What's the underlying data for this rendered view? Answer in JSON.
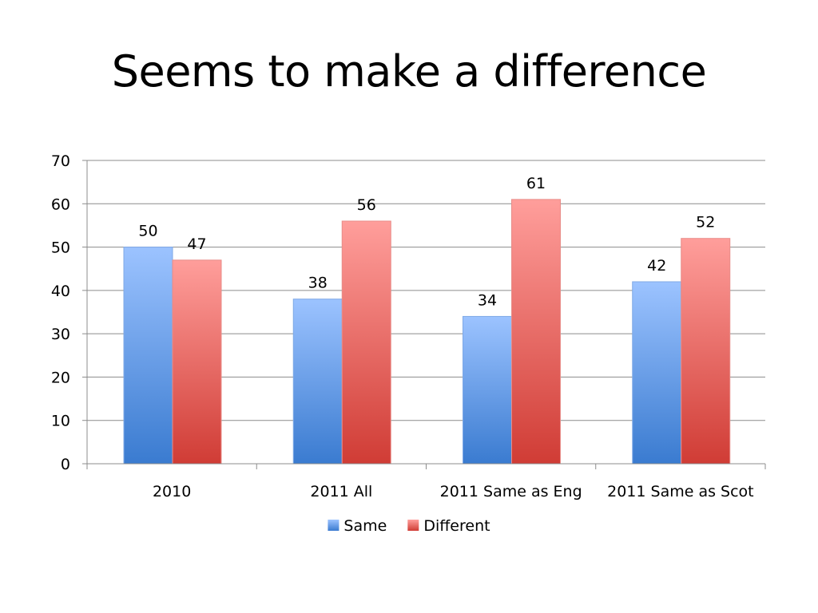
{
  "slide": {
    "title": "Seems to make a difference"
  },
  "chart_data": {
    "type": "bar",
    "title": "",
    "xlabel": "",
    "ylabel": "",
    "categories": [
      "2010",
      "2011 All",
      "2011 Same as Eng",
      "2011 Same as Scot"
    ],
    "series": [
      {
        "name": "Same",
        "values": [
          50,
          38,
          34,
          42
        ],
        "color_top": "#9cc3ff",
        "color_bottom": "#3a7bd0"
      },
      {
        "name": "Different",
        "values": [
          47,
          56,
          61,
          52
        ],
        "color_top": "#ff9e9b",
        "color_bottom": "#d03c35"
      }
    ],
    "ylim": [
      0,
      70
    ],
    "yticks": [
      0,
      10,
      20,
      30,
      40,
      50,
      60,
      70
    ],
    "grid": true,
    "data_labels": true,
    "legend": {
      "position": "bottom"
    }
  }
}
